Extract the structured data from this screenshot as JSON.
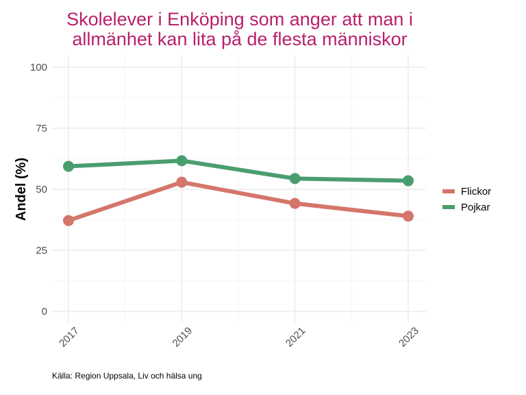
{
  "chart_data": {
    "type": "line",
    "title": "Skolelever i Enköping som anger att man i allmänhet kan lita på de flesta människor",
    "title_lines": [
      "Skolelever i Enköping som anger att man i",
      "allmänhet kan lita på de flesta människor"
    ],
    "xlabel": "",
    "ylabel": "Andel (%)",
    "x": [
      "2017",
      "2019",
      "2021",
      "2023"
    ],
    "ylim": [
      0,
      100
    ],
    "yticks": [
      "0",
      "25",
      "50",
      "75",
      "100"
    ],
    "grid": true,
    "legend_position": "right",
    "series": [
      {
        "name": "Flickor",
        "color": "#D4766A",
        "values": [
          37.2,
          52.9,
          44.2,
          39.0
        ]
      },
      {
        "name": "Pojkar",
        "color": "#4A9E6E",
        "values": [
          59.4,
          61.7,
          54.4,
          53.5
        ]
      }
    ],
    "caption": "Källa: Region Uppsala, Liv och hälsa ung"
  }
}
